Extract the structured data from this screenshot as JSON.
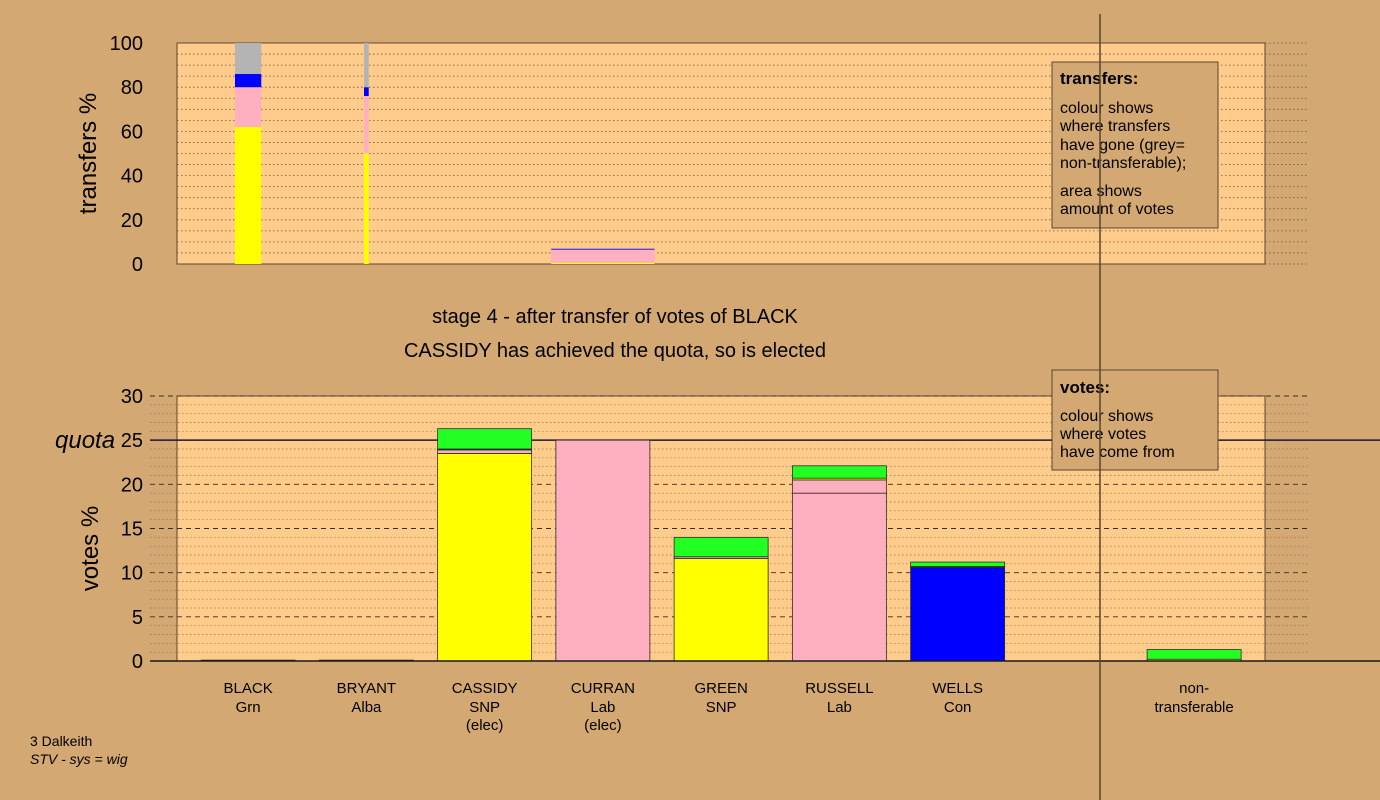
{
  "chart_data": {
    "type": "bar",
    "title": "stage 4 - after transfer of votes of BLACK",
    "subtitle": "CASSIDY has achieved the quota, so is elected",
    "colors": {
      "background": "#d4a872",
      "plot": "#ffcc8c",
      "Grn": "#22ff22",
      "SNP": "#ffff00",
      "Lab": "#ffb0c0",
      "Con": "#0000ff",
      "Alba": "#0000ff",
      "non_transferable": "#b4b4b4"
    },
    "candidates": [
      {
        "name": "BLACK",
        "party": "Grn",
        "note": ""
      },
      {
        "name": "BRYANT",
        "party": "Alba",
        "note": ""
      },
      {
        "name": "CASSIDY",
        "party": "SNP",
        "note": "(elec)"
      },
      {
        "name": "CURRAN",
        "party": "Lab",
        "note": "(elec)"
      },
      {
        "name": "GREEN",
        "party": "SNP",
        "note": ""
      },
      {
        "name": "RUSSELL",
        "party": "Lab",
        "note": ""
      },
      {
        "name": "WELLS",
        "party": "Con",
        "note": ""
      },
      {
        "name": "",
        "party": "",
        "note": ""
      },
      {
        "name": "non-",
        "party": "transferable",
        "note": ""
      }
    ],
    "transfers_chart": {
      "ylabel": "transfers %",
      "ylim": [
        0,
        100
      ],
      "yticks": [
        0,
        20,
        40,
        60,
        80,
        100
      ],
      "bars": [
        {
          "index": 0,
          "width_fraction": 0.28,
          "segments": [
            {
              "color": "#ffff00",
              "value": 62
            },
            {
              "color": "#ffb0c0",
              "value": 18
            },
            {
              "color": "#0000ff",
              "value": 6
            },
            {
              "color": "#b4b4b4",
              "value": 14
            }
          ]
        },
        {
          "index": 1,
          "width_fraction": 0.05,
          "segments": [
            {
              "color": "#ffff00",
              "value": 50
            },
            {
              "color": "#ffb0c0",
              "value": 26
            },
            {
              "color": "#0000ff",
              "value": 4
            },
            {
              "color": "#b4b4b4",
              "value": 20
            }
          ]
        },
        {
          "index": 3,
          "width_fraction": 1.1,
          "segments": [
            {
              "color": "#ffff00",
              "value": 0.5
            },
            {
              "color": "#ffb0c0",
              "value": 6
            },
            {
              "color": "#0000ff",
              "value": 0.4
            }
          ]
        }
      ]
    },
    "votes_chart": {
      "ylabel": "votes %",
      "ylim": [
        0,
        30
      ],
      "yticks": [
        0,
        5,
        10,
        15,
        20,
        25,
        30
      ],
      "quota": 25,
      "quota_label": "quota",
      "bars": [
        {
          "index": 0,
          "segments": [
            {
              "color": "#22ff22",
              "value": 0.1
            }
          ]
        },
        {
          "index": 1,
          "segments": [
            {
              "color": "#0000ff",
              "value": 0.1
            }
          ]
        },
        {
          "index": 2,
          "segments": [
            {
              "color": "#ffff00",
              "value": 23.5
            },
            {
              "color": "#ffb0c0",
              "value": 0.4
            },
            {
              "color": "#0000ff",
              "value": 0.1
            },
            {
              "color": "#22ff22",
              "value": 2.3
            }
          ]
        },
        {
          "index": 3,
          "segments": [
            {
              "color": "#ffb0c0",
              "value": 25
            }
          ]
        },
        {
          "index": 4,
          "segments": [
            {
              "color": "#ffff00",
              "value": 11.6
            },
            {
              "color": "#ffb0c0",
              "value": 0.2
            },
            {
              "color": "#22ff22",
              "value": 2.2
            }
          ]
        },
        {
          "index": 5,
          "segments": [
            {
              "color": "#ffb0c0",
              "value": 19
            },
            {
              "color": "#ffb0c0",
              "value": 1.5
            },
            {
              "color": "#ffff00",
              "value": 0.2
            },
            {
              "color": "#22ff22",
              "value": 1.4
            }
          ]
        },
        {
          "index": 6,
          "segments": [
            {
              "color": "#0000ff",
              "value": 10.6
            },
            {
              "color": "#ffff00",
              "value": 0.1
            },
            {
              "color": "#22ff22",
              "value": 0.5
            }
          ]
        },
        {
          "index": 8,
          "segments": [
            {
              "color": "#ffff00",
              "value": 0.2
            },
            {
              "color": "#22ff22",
              "value": 1.1
            }
          ]
        }
      ]
    },
    "legend_transfers": {
      "title": "transfers:",
      "lines1": [
        "colour shows",
        "where transfers",
        "have gone (grey=",
        "non-transferable);"
      ],
      "lines2": [
        "area shows",
        "amount of votes"
      ]
    },
    "legend_votes": {
      "title": "votes:",
      "lines": [
        "colour shows",
        "where votes",
        "have come from"
      ]
    },
    "footer": {
      "line1": "3 Dalkeith",
      "line2": "STV - sys = wig"
    }
  }
}
